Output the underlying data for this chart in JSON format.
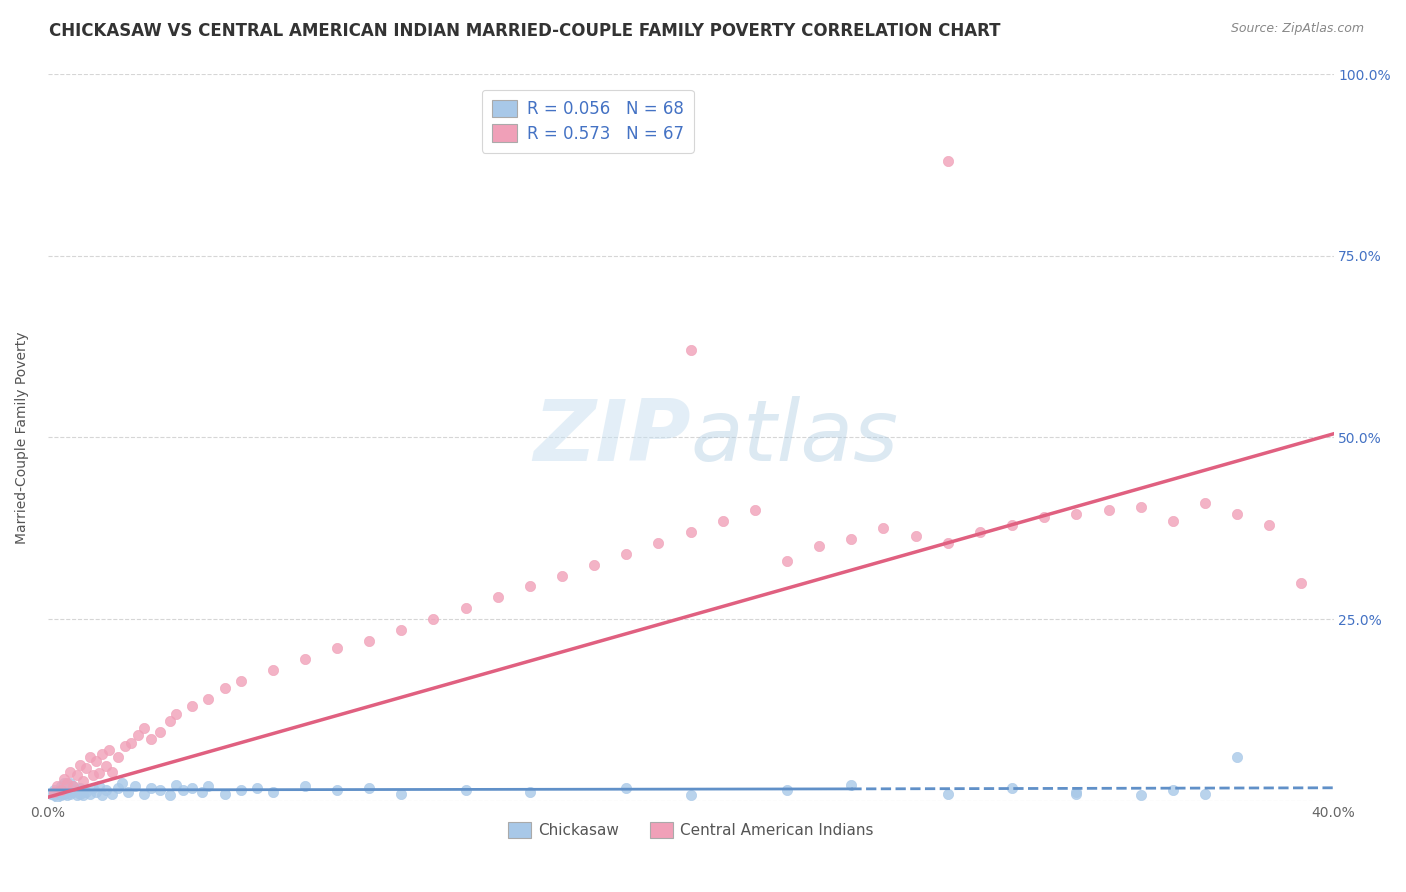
{
  "title": "CHICKASAW VS CENTRAL AMERICAN INDIAN MARRIED-COUPLE FAMILY POVERTY CORRELATION CHART",
  "source": "Source: ZipAtlas.com",
  "ylabel": "Married-Couple Family Poverty",
  "xlim": [
    0.0,
    0.4
  ],
  "ylim": [
    0.0,
    1.0
  ],
  "legend1_R": "0.056",
  "legend1_N": "68",
  "legend2_R": "0.573",
  "legend2_N": "67",
  "legend_label1": "Chickasaw",
  "legend_label2": "Central American Indians",
  "color_chickasaw": "#a8c8e8",
  "color_cai": "#f0a0b8",
  "color_line1": "#6090c8",
  "color_line2": "#e06080",
  "background_color": "#ffffff",
  "title_fontsize": 12,
  "axis_label_fontsize": 10,
  "tick_fontsize": 10,
  "chickasaw_x": [
    0.001,
    0.002,
    0.002,
    0.003,
    0.003,
    0.004,
    0.004,
    0.004,
    0.005,
    0.005,
    0.005,
    0.006,
    0.006,
    0.006,
    0.007,
    0.007,
    0.007,
    0.008,
    0.008,
    0.009,
    0.009,
    0.01,
    0.01,
    0.011,
    0.011,
    0.012,
    0.013,
    0.014,
    0.015,
    0.016,
    0.017,
    0.018,
    0.02,
    0.022,
    0.023,
    0.025,
    0.027,
    0.03,
    0.032,
    0.035,
    0.038,
    0.04,
    0.042,
    0.045,
    0.048,
    0.05,
    0.055,
    0.06,
    0.065,
    0.07,
    0.08,
    0.09,
    0.1,
    0.11,
    0.13,
    0.15,
    0.18,
    0.2,
    0.23,
    0.25,
    0.28,
    0.3,
    0.32,
    0.34,
    0.36,
    0.35,
    0.32,
    0.37
  ],
  "chickasaw_y": [
    0.01,
    0.008,
    0.015,
    0.005,
    0.012,
    0.008,
    0.015,
    0.02,
    0.01,
    0.018,
    0.025,
    0.008,
    0.015,
    0.022,
    0.01,
    0.018,
    0.025,
    0.012,
    0.02,
    0.008,
    0.015,
    0.01,
    0.018,
    0.008,
    0.015,
    0.012,
    0.01,
    0.018,
    0.012,
    0.02,
    0.008,
    0.015,
    0.01,
    0.018,
    0.025,
    0.012,
    0.02,
    0.01,
    0.018,
    0.015,
    0.008,
    0.022,
    0.015,
    0.018,
    0.012,
    0.02,
    0.01,
    0.015,
    0.018,
    0.012,
    0.02,
    0.015,
    0.018,
    0.01,
    0.015,
    0.012,
    0.018,
    0.008,
    0.015,
    0.022,
    0.01,
    0.018,
    0.012,
    0.008,
    0.01,
    0.015,
    0.01,
    0.06
  ],
  "cai_x": [
    0.002,
    0.003,
    0.004,
    0.005,
    0.006,
    0.007,
    0.008,
    0.009,
    0.01,
    0.011,
    0.012,
    0.013,
    0.014,
    0.015,
    0.016,
    0.017,
    0.018,
    0.019,
    0.02,
    0.022,
    0.024,
    0.026,
    0.028,
    0.03,
    0.032,
    0.035,
    0.038,
    0.04,
    0.045,
    0.05,
    0.055,
    0.06,
    0.07,
    0.08,
    0.09,
    0.1,
    0.11,
    0.12,
    0.13,
    0.14,
    0.15,
    0.16,
    0.17,
    0.18,
    0.19,
    0.2,
    0.21,
    0.22,
    0.23,
    0.24,
    0.25,
    0.26,
    0.27,
    0.28,
    0.29,
    0.3,
    0.31,
    0.32,
    0.33,
    0.34,
    0.35,
    0.36,
    0.37,
    0.38,
    0.39,
    0.28,
    0.2
  ],
  "cai_y": [
    0.012,
    0.02,
    0.015,
    0.03,
    0.025,
    0.04,
    0.02,
    0.035,
    0.05,
    0.028,
    0.045,
    0.06,
    0.035,
    0.055,
    0.038,
    0.065,
    0.048,
    0.07,
    0.04,
    0.06,
    0.075,
    0.08,
    0.09,
    0.1,
    0.085,
    0.095,
    0.11,
    0.12,
    0.13,
    0.14,
    0.155,
    0.165,
    0.18,
    0.195,
    0.21,
    0.22,
    0.235,
    0.25,
    0.265,
    0.28,
    0.295,
    0.31,
    0.325,
    0.34,
    0.355,
    0.37,
    0.385,
    0.4,
    0.33,
    0.35,
    0.36,
    0.375,
    0.365,
    0.355,
    0.37,
    0.38,
    0.39,
    0.395,
    0.4,
    0.405,
    0.385,
    0.41,
    0.395,
    0.38,
    0.3,
    0.88,
    0.62
  ],
  "line1_x0": 0.0,
  "line1_x1": 0.4,
  "line1_y0": 0.015,
  "line1_y1": 0.018,
  "line2_x0": 0.0,
  "line2_x1": 0.4,
  "line2_y0": 0.005,
  "line2_y1": 0.505
}
